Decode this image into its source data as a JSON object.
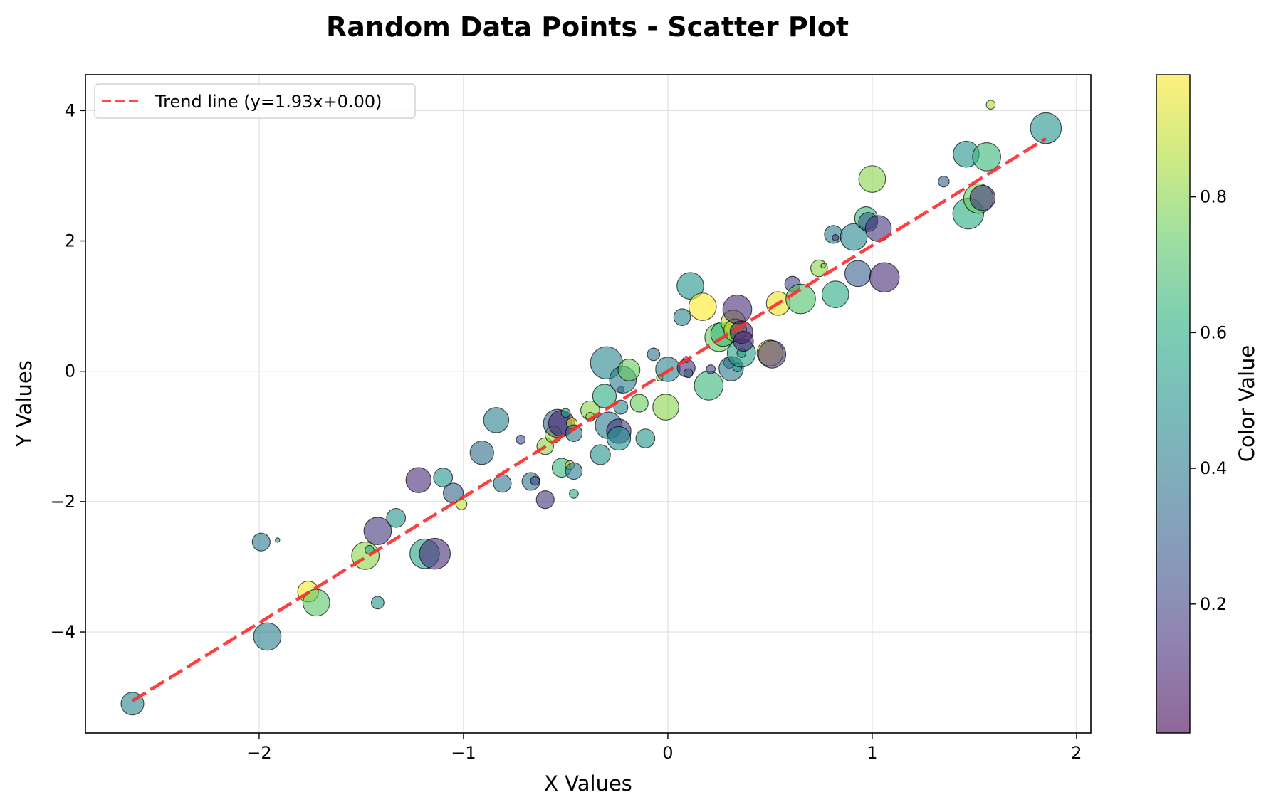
{
  "chart_data": {
    "type": "scatter",
    "title": "Random Data Points - Scatter Plot",
    "xlabel": "X Values",
    "ylabel": "Y Values",
    "xlim": [
      -2.85,
      2.07
    ],
    "ylim": [
      -5.55,
      4.55
    ],
    "xticks": [
      -2,
      -1,
      0,
      1,
      2
    ],
    "xtick_labels": [
      "−2",
      "−1",
      "0",
      "1",
      "2"
    ],
    "yticks": [
      -4,
      -2,
      0,
      2,
      4
    ],
    "ytick_labels": [
      "−4",
      "−2",
      "0",
      "2",
      "4"
    ],
    "grid": true,
    "legend": {
      "placement": "top-left",
      "label": "Trend line (y=1.93x+0.00)"
    },
    "colormap": "viridis",
    "colorbar": {
      "label": "Color Value",
      "range": [
        0.01,
        0.98
      ],
      "ticks": [
        0.2,
        0.4,
        0.6,
        0.8
      ],
      "tick_labels": [
        "0.2",
        "0.4",
        "0.6",
        "0.8"
      ]
    },
    "trend_line": {
      "slope": 1.93,
      "intercept": 0.0,
      "x_range": [
        -2.62,
        1.85
      ],
      "color": "#ff2a2a"
    },
    "points": [
      {
        "x": -2.62,
        "y": -5.1,
        "c": 0.45,
        "s": 130
      },
      {
        "x": -1.96,
        "y": -4.07,
        "c": 0.42,
        "s": 190
      },
      {
        "x": -1.99,
        "y": -2.62,
        "c": 0.4,
        "s": 80
      },
      {
        "x": -1.91,
        "y": -2.59,
        "c": 0.55,
        "s": 5
      },
      {
        "x": -1.76,
        "y": -3.38,
        "c": 0.97,
        "s": 110
      },
      {
        "x": -1.72,
        "y": -3.55,
        "c": 0.72,
        "s": 180
      },
      {
        "x": -1.48,
        "y": -2.83,
        "c": 0.8,
        "s": 190
      },
      {
        "x": -1.46,
        "y": -2.74,
        "c": 0.6,
        "s": 20
      },
      {
        "x": -1.42,
        "y": -2.45,
        "c": 0.15,
        "s": 190
      },
      {
        "x": -1.42,
        "y": -3.55,
        "c": 0.5,
        "s": 40
      },
      {
        "x": -1.33,
        "y": -2.25,
        "c": 0.5,
        "s": 90
      },
      {
        "x": -1.22,
        "y": -1.67,
        "c": 0.12,
        "s": 160
      },
      {
        "x": -1.19,
        "y": -2.8,
        "c": 0.55,
        "s": 220
      },
      {
        "x": -1.14,
        "y": -2.8,
        "c": 0.12,
        "s": 240
      },
      {
        "x": -1.1,
        "y": -1.63,
        "c": 0.5,
        "s": 90
      },
      {
        "x": -1.05,
        "y": -1.87,
        "c": 0.3,
        "s": 100
      },
      {
        "x": -1.01,
        "y": -2.04,
        "c": 0.9,
        "s": 30
      },
      {
        "x": -0.91,
        "y": -1.25,
        "c": 0.35,
        "s": 140
      },
      {
        "x": -0.84,
        "y": -0.75,
        "c": 0.42,
        "s": 160
      },
      {
        "x": -0.81,
        "y": -1.72,
        "c": 0.38,
        "s": 80
      },
      {
        "x": -0.72,
        "y": -1.05,
        "c": 0.25,
        "s": 20
      },
      {
        "x": -0.67,
        "y": -1.69,
        "c": 0.38,
        "s": 80
      },
      {
        "x": -0.65,
        "y": -1.68,
        "c": 0.2,
        "s": 20
      },
      {
        "x": -0.6,
        "y": -1.15,
        "c": 0.8,
        "s": 70
      },
      {
        "x": -0.6,
        "y": -1.97,
        "c": 0.15,
        "s": 80
      },
      {
        "x": -0.56,
        "y": -0.97,
        "c": 0.85,
        "s": 70
      },
      {
        "x": -0.54,
        "y": -0.8,
        "c": 0.3,
        "s": 200
      },
      {
        "x": -0.52,
        "y": -0.8,
        "c": 0.1,
        "s": 170
      },
      {
        "x": -0.52,
        "y": -1.48,
        "c": 0.65,
        "s": 90
      },
      {
        "x": -0.5,
        "y": -0.64,
        "c": 0.6,
        "s": 20
      },
      {
        "x": -0.48,
        "y": -1.44,
        "c": 0.9,
        "s": 20
      },
      {
        "x": -0.47,
        "y": -0.8,
        "c": 0.95,
        "s": 30
      },
      {
        "x": -0.46,
        "y": -0.95,
        "c": 0.4,
        "s": 70
      },
      {
        "x": -0.46,
        "y": -1.53,
        "c": 0.4,
        "s": 70
      },
      {
        "x": -0.46,
        "y": -1.88,
        "c": 0.6,
        "s": 20
      },
      {
        "x": -0.38,
        "y": -0.6,
        "c": 0.8,
        "s": 90
      },
      {
        "x": -0.38,
        "y": -0.7,
        "c": 0.8,
        "s": 20
      },
      {
        "x": -0.33,
        "y": -1.28,
        "c": 0.5,
        "s": 100
      },
      {
        "x": -0.31,
        "y": -0.38,
        "c": 0.6,
        "s": 140
      },
      {
        "x": -0.3,
        "y": 0.13,
        "c": 0.45,
        "s": 260
      },
      {
        "x": -0.29,
        "y": -0.83,
        "c": 0.4,
        "s": 180
      },
      {
        "x": -0.24,
        "y": -0.92,
        "c": 0.15,
        "s": 150
      },
      {
        "x": -0.24,
        "y": -1.03,
        "c": 0.5,
        "s": 140
      },
      {
        "x": -0.23,
        "y": -0.55,
        "c": 0.45,
        "s": 50
      },
      {
        "x": -0.23,
        "y": -0.28,
        "c": 0.3,
        "s": 10
      },
      {
        "x": -0.22,
        "y": -0.13,
        "c": 0.4,
        "s": 180
      },
      {
        "x": -0.19,
        "y": 0.02,
        "c": 0.75,
        "s": 120
      },
      {
        "x": -0.14,
        "y": -0.49,
        "c": 0.75,
        "s": 80
      },
      {
        "x": -0.11,
        "y": -1.03,
        "c": 0.5,
        "s": 90
      },
      {
        "x": -0.07,
        "y": 0.26,
        "c": 0.35,
        "s": 40
      },
      {
        "x": -0.04,
        "y": -0.1,
        "c": 0.9,
        "s": 10
      },
      {
        "x": -0.01,
        "y": -0.55,
        "c": 0.8,
        "s": 170
      },
      {
        "x": 0.0,
        "y": 0.03,
        "c": 0.45,
        "s": 150
      },
      {
        "x": 0.07,
        "y": 0.83,
        "c": 0.45,
        "s": 70
      },
      {
        "x": 0.09,
        "y": 0.18,
        "c": 0.3,
        "s": 10
      },
      {
        "x": 0.09,
        "y": 0.05,
        "c": 0.15,
        "s": 80
      },
      {
        "x": 0.1,
        "y": -0.03,
        "c": 0.3,
        "s": 20
      },
      {
        "x": 0.11,
        "y": 1.31,
        "c": 0.5,
        "s": 180
      },
      {
        "x": 0.17,
        "y": 0.99,
        "c": 0.98,
        "s": 190
      },
      {
        "x": 0.2,
        "y": -0.22,
        "c": 0.65,
        "s": 210
      },
      {
        "x": 0.21,
        "y": 0.03,
        "c": 0.2,
        "s": 20
      },
      {
        "x": 0.25,
        "y": 0.52,
        "c": 0.75,
        "s": 200
      },
      {
        "x": 0.27,
        "y": 0.57,
        "c": 0.65,
        "s": 150
      },
      {
        "x": 0.3,
        "y": 0.13,
        "c": 0.3,
        "s": 30
      },
      {
        "x": 0.31,
        "y": 0.04,
        "c": 0.4,
        "s": 150
      },
      {
        "x": 0.32,
        "y": 0.75,
        "c": 0.9,
        "s": 150
      },
      {
        "x": 0.33,
        "y": 0.63,
        "c": 0.85,
        "s": 130
      },
      {
        "x": 0.34,
        "y": 0.95,
        "c": 0.12,
        "s": 210
      },
      {
        "x": 0.34,
        "y": 0.06,
        "c": 0.55,
        "s": 20
      },
      {
        "x": 0.36,
        "y": 0.28,
        "c": 0.55,
        "s": 200
      },
      {
        "x": 0.36,
        "y": 0.6,
        "c": 0.1,
        "s": 130
      },
      {
        "x": 0.36,
        "y": 0.28,
        "c": 0.55,
        "s": 20
      },
      {
        "x": 0.37,
        "y": 0.46,
        "c": 0.1,
        "s": 100
      },
      {
        "x": 0.5,
        "y": 0.28,
        "c": 0.95,
        "s": 170
      },
      {
        "x": 0.51,
        "y": 0.26,
        "c": 0.15,
        "s": 190
      },
      {
        "x": 0.54,
        "y": 1.04,
        "c": 0.95,
        "s": 140
      },
      {
        "x": 0.61,
        "y": 1.34,
        "c": 0.2,
        "s": 60
      },
      {
        "x": 0.65,
        "y": 1.11,
        "c": 0.7,
        "s": 220
      },
      {
        "x": 0.74,
        "y": 1.58,
        "c": 0.8,
        "s": 70
      },
      {
        "x": 0.76,
        "y": 1.62,
        "c": 0.8,
        "s": 5
      },
      {
        "x": 0.81,
        "y": 2.1,
        "c": 0.4,
        "s": 80
      },
      {
        "x": 0.82,
        "y": 2.05,
        "c": 0.2,
        "s": 10
      },
      {
        "x": 0.82,
        "y": 1.18,
        "c": 0.6,
        "s": 180
      },
      {
        "x": 0.91,
        "y": 2.06,
        "c": 0.45,
        "s": 180
      },
      {
        "x": 0.93,
        "y": 1.5,
        "c": 0.3,
        "s": 170
      },
      {
        "x": 0.97,
        "y": 2.35,
        "c": 0.65,
        "s": 130
      },
      {
        "x": 0.98,
        "y": 2.29,
        "c": 0.3,
        "s": 90
      },
      {
        "x": 1.0,
        "y": 2.95,
        "c": 0.8,
        "s": 180
      },
      {
        "x": 1.03,
        "y": 2.19,
        "c": 0.15,
        "s": 170
      },
      {
        "x": 1.06,
        "y": 1.44,
        "c": 0.12,
        "s": 220
      },
      {
        "x": 1.35,
        "y": 2.91,
        "c": 0.3,
        "s": 30
      },
      {
        "x": 1.46,
        "y": 3.33,
        "c": 0.5,
        "s": 170
      },
      {
        "x": 1.47,
        "y": 2.42,
        "c": 0.6,
        "s": 240
      },
      {
        "x": 1.52,
        "y": 2.65,
        "c": 0.75,
        "s": 220
      },
      {
        "x": 1.54,
        "y": 2.66,
        "c": 0.15,
        "s": 160
      },
      {
        "x": 1.56,
        "y": 3.29,
        "c": 0.65,
        "s": 200
      },
      {
        "x": 1.58,
        "y": 4.09,
        "c": 0.85,
        "s": 20
      },
      {
        "x": 1.85,
        "y": 3.73,
        "c": 0.5,
        "s": 240
      }
    ]
  }
}
